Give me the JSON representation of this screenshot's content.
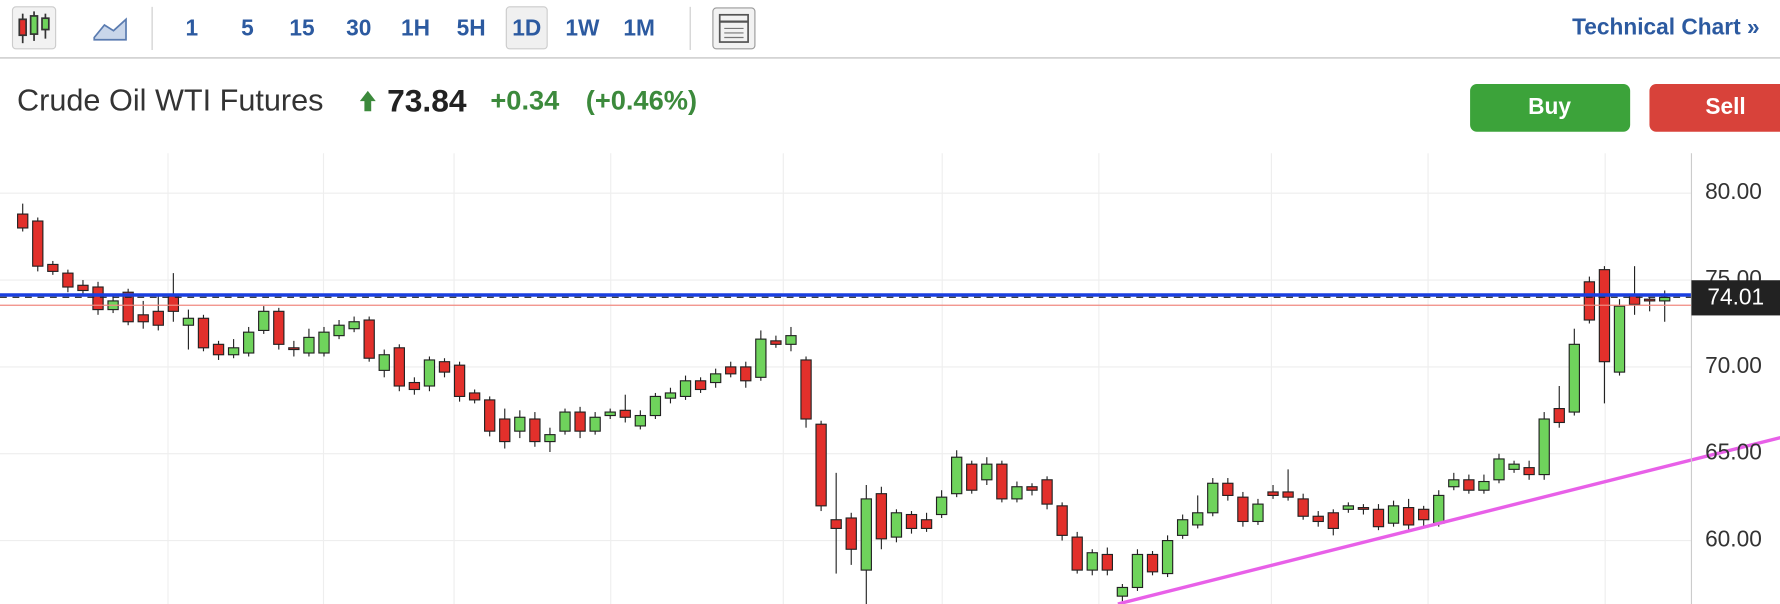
{
  "toolbar": {
    "intervals": [
      "1",
      "5",
      "15",
      "30",
      "1H",
      "5H",
      "1D",
      "1W",
      "1M"
    ],
    "selected": 6,
    "link": "Technical Chart »"
  },
  "header": {
    "title": "Crude Oil WTI Futures",
    "price": "73.84",
    "change": "+0.34",
    "change_percent": "(+0.46%)",
    "buy": "Buy",
    "sell": "Sell"
  },
  "chart_data": {
    "type": "candlestick",
    "open": [
      78.8,
      78.4,
      75.9,
      75.4,
      74.7,
      74.6,
      73.3,
      74.3,
      73.0,
      73.2,
      74.1,
      72.4,
      72.8,
      71.3,
      70.7,
      70.8,
      72.1,
      73.2,
      71.1,
      70.8,
      70.8,
      71.8,
      72.2,
      72.7,
      69.8,
      71.1,
      69.1,
      68.9,
      70.3,
      70.1,
      68.5,
      68.1,
      67.0,
      66.3,
      67.0,
      65.7,
      66.3,
      67.4,
      66.3,
      67.2,
      67.5,
      66.6,
      67.2,
      68.2,
      68.3,
      69.2,
      69.1,
      70.0,
      70.0,
      69.4,
      71.5,
      71.3,
      70.4,
      66.7,
      61.2,
      61.3,
      58.3,
      62.7,
      60.2,
      61.5,
      61.2,
      61.5,
      62.7,
      64.4,
      63.5,
      64.4,
      62.4,
      63.1,
      63.5,
      62.0,
      60.2,
      58.3,
      59.2,
      56.8,
      57.3,
      59.2,
      58.1,
      60.3,
      60.9,
      61.6,
      63.3,
      62.5,
      61.1,
      62.8,
      62.8,
      62.4,
      61.4,
      61.6,
      61.8,
      61.9,
      61.8,
      61.0,
      61.9,
      61.8,
      61.0,
      63.1,
      63.5,
      62.9,
      63.5,
      64.1,
      64.2,
      63.8,
      67.6,
      67.4,
      74.9,
      75.6,
      69.7,
      74.1,
      73.9,
      73.8
    ],
    "high": [
      79.4,
      78.6,
      76.1,
      75.6,
      75.0,
      74.9,
      74.1,
      74.5,
      73.8,
      74.2,
      75.4,
      73.3,
      73.0,
      71.5,
      71.6,
      72.3,
      73.5,
      73.4,
      71.5,
      72.2,
      72.3,
      72.7,
      72.9,
      72.9,
      71.0,
      71.3,
      69.4,
      70.6,
      70.5,
      70.3,
      68.7,
      68.3,
      67.6,
      67.5,
      67.4,
      66.5,
      67.6,
      67.7,
      67.4,
      67.6,
      68.4,
      67.5,
      68.5,
      68.8,
      69.5,
      69.4,
      69.9,
      70.3,
      70.3,
      72.1,
      71.8,
      72.3,
      70.6,
      66.9,
      63.9,
      61.6,
      63.2,
      63.1,
      61.8,
      61.7,
      61.6,
      62.9,
      65.2,
      64.6,
      64.8,
      64.6,
      63.4,
      63.3,
      63.7,
      62.2,
      60.5,
      59.5,
      59.6,
      57.5,
      59.5,
      59.4,
      60.3,
      61.5,
      62.6,
      63.6,
      63.6,
      62.8,
      62.4,
      63.2,
      64.1,
      62.7,
      61.7,
      61.8,
      62.2,
      62.1,
      62.1,
      62.3,
      62.4,
      62.0,
      62.9,
      63.9,
      63.8,
      63.8,
      65.0,
      64.6,
      64.6,
      67.4,
      68.9,
      72.2,
      75.2,
      75.8,
      73.9,
      75.8,
      74.0,
      74.4
    ],
    "low": [
      77.8,
      75.5,
      75.3,
      74.3,
      74.1,
      73.0,
      73.1,
      72.4,
      72.2,
      72.1,
      72.6,
      71.0,
      70.9,
      70.4,
      70.5,
      70.6,
      71.9,
      71.0,
      70.6,
      70.6,
      70.6,
      71.6,
      72.0,
      70.3,
      69.4,
      68.6,
      68.4,
      68.6,
      69.4,
      68.0,
      67.9,
      66.0,
      65.3,
      65.9,
      65.4,
      65.1,
      66.1,
      65.9,
      66.1,
      67.0,
      66.8,
      66.4,
      67.0,
      67.9,
      68.1,
      68.5,
      68.8,
      69.4,
      68.8,
      69.2,
      71.1,
      70.9,
      66.5,
      61.7,
      58.1,
      58.6,
      56.2,
      59.5,
      59.9,
      60.4,
      60.5,
      61.3,
      62.5,
      62.7,
      63.2,
      62.2,
      62.2,
      62.6,
      61.8,
      60.0,
      58.1,
      58.0,
      58.0,
      56.5,
      57.1,
      58.0,
      57.9,
      60.1,
      60.7,
      61.4,
      62.3,
      60.8,
      60.9,
      62.4,
      62.3,
      61.2,
      60.8,
      60.3,
      61.6,
      61.5,
      60.6,
      60.8,
      60.6,
      60.8,
      60.8,
      62.9,
      62.7,
      62.7,
      63.3,
      63.9,
      63.5,
      63.5,
      66.5,
      67.2,
      72.5,
      67.9,
      69.5,
      73.0,
      73.2,
      72.6
    ],
    "close": [
      78.0,
      75.8,
      75.5,
      74.6,
      74.4,
      73.3,
      73.8,
      72.6,
      72.6,
      72.4,
      73.2,
      72.8,
      71.1,
      70.7,
      71.1,
      72.0,
      73.2,
      71.3,
      71.0,
      71.7,
      72.0,
      72.4,
      72.6,
      70.5,
      70.7,
      68.9,
      68.7,
      70.4,
      69.7,
      68.3,
      68.1,
      66.3,
      65.7,
      67.1,
      65.7,
      66.1,
      67.4,
      66.3,
      67.1,
      67.4,
      67.1,
      67.2,
      68.3,
      68.5,
      69.2,
      68.7,
      69.6,
      69.6,
      69.2,
      71.6,
      71.3,
      71.8,
      67.0,
      62.0,
      60.7,
      59.5,
      62.4,
      60.1,
      61.6,
      60.7,
      60.7,
      62.5,
      64.8,
      62.9,
      64.4,
      62.4,
      63.1,
      62.9,
      62.1,
      60.3,
      58.3,
      59.3,
      58.3,
      57.3,
      59.2,
      58.2,
      60.0,
      61.2,
      61.6,
      63.3,
      62.6,
      61.1,
      62.1,
      62.6,
      62.5,
      61.4,
      61.1,
      60.7,
      62.0,
      61.8,
      60.8,
      62.0,
      60.9,
      61.2,
      62.6,
      63.5,
      62.9,
      63.4,
      64.7,
      64.4,
      63.8,
      67.0,
      66.8,
      71.3,
      72.7,
      70.3,
      73.5,
      73.6,
      73.8,
      74.0
    ],
    "up_color": "#6fd35c",
    "down_color": "#e2302b",
    "ylim": [
      56.35,
      82.3
    ],
    "yticks": [
      {
        "value": 60,
        "label": "60.00"
      },
      {
        "value": 65,
        "label": "65.00"
      },
      {
        "value": 70,
        "label": "70.00"
      },
      {
        "value": 75,
        "label": "75.00"
      },
      {
        "value": 80,
        "label": "80.00"
      }
    ],
    "grid": true,
    "last_price": 74.01,
    "hlines": [
      {
        "value": 73.55,
        "color": "#f08a80"
      },
      {
        "value": 74.14,
        "color": "#1a3fe0"
      }
    ],
    "trendline": {
      "x": [
        72.7,
        116.7
      ],
      "values": [
        56.35,
        65.93
      ],
      "color": "#e860e8"
    }
  }
}
